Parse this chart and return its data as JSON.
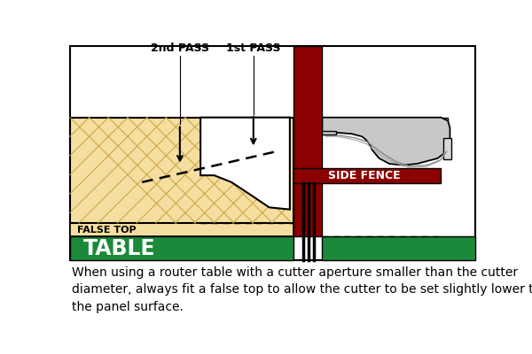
{
  "bg_color": "#ffffff",
  "wood_color": "#F5DFA0",
  "wood_hatch_color": "#C8A040",
  "table_color": "#1a8a3a",
  "false_top_color": "#F5DFA0",
  "fence_color": "#8B0000",
  "gray_light": "#C8C8C8",
  "gray_med": "#A8A8A8",
  "gray_dark": "#888888",
  "table_text": "TABLE",
  "false_top_label": "FALSE TOP",
  "fence_label": "SIDE FENCE",
  "label_1st": "1st PASS",
  "label_2nd": "2nd PASS",
  "caption": "When using a router table with a cutter aperture smaller than the cutter\ndiameter, always fit a false top to allow the cutter to be set slightly lower than\nthe panel surface.",
  "caption_fontsize": 10,
  "pass_fontsize": 9
}
